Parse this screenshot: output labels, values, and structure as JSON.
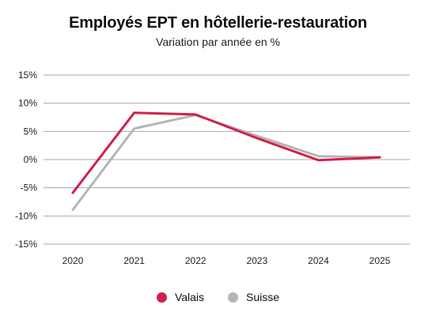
{
  "colors": {
    "valais": "#d21f4b",
    "suisse": "#b5b5b5",
    "grid": "#a9a9a9"
  },
  "chart_data": {
    "type": "line",
    "title": "Employés EPT en hôtellerie-restauration",
    "subtitle": "Variation par année en %",
    "xlabel": "",
    "ylabel": "",
    "x": [
      "2020",
      "2021",
      "2022",
      "2023",
      "2024",
      "2025"
    ],
    "ylim": [
      -15,
      15
    ],
    "yticks": [
      15,
      10,
      5,
      0,
      -5,
      -10,
      -15
    ],
    "ytick_labels": [
      "15%",
      "10%",
      "5%",
      "0%",
      "-5%",
      "-10%",
      "-15%"
    ],
    "grid": "horizontal",
    "legend_position": "bottom-center",
    "series": [
      {
        "name": "Valais",
        "color": "#d21f4b",
        "values": [
          -5.9,
          8.3,
          8.0,
          3.8,
          -0.1,
          0.4
        ]
      },
      {
        "name": "Suisse",
        "color": "#b5b5b5",
        "values": [
          -8.9,
          5.5,
          7.9,
          4.2,
          0.6,
          0.4
        ]
      }
    ]
  }
}
